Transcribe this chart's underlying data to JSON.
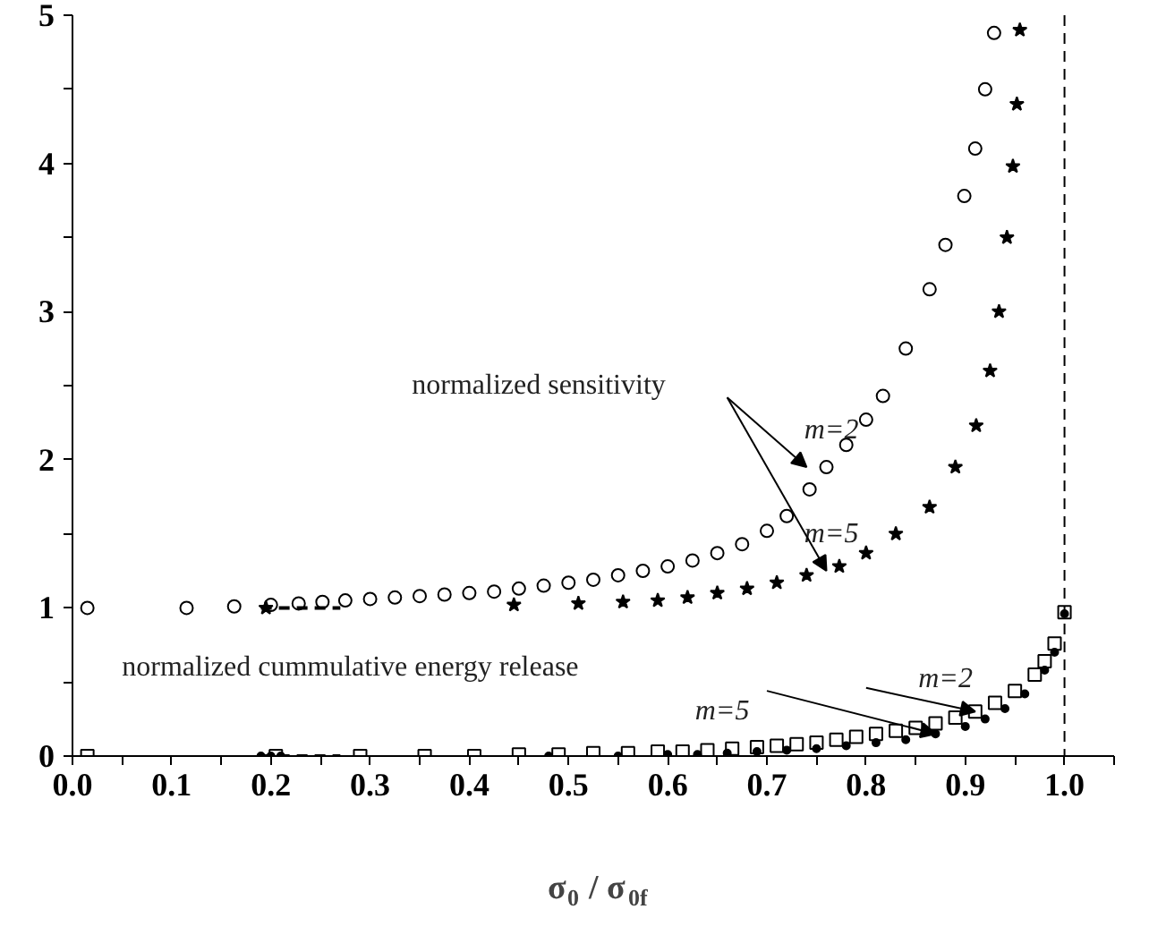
{
  "chart_data": {
    "type": "scatter",
    "xlabel": "σ$_{0}$ / σ$_{0f}$",
    "xlim": [
      0,
      1.05
    ],
    "ylim": [
      0,
      5
    ],
    "xticks": [
      {
        "value": 0,
        "label": "0.0"
      },
      {
        "value": 0.05,
        "label": null
      },
      {
        "value": 0.1,
        "label": "0.1"
      },
      {
        "value": 0.15,
        "label": null
      },
      {
        "value": 0.2,
        "label": "0.2"
      },
      {
        "value": 0.25,
        "label": null
      },
      {
        "value": 0.3,
        "label": "0.3"
      },
      {
        "value": 0.35,
        "label": null
      },
      {
        "value": 0.4,
        "label": "0.4"
      },
      {
        "value": 0.45,
        "label": null
      },
      {
        "value": 0.5,
        "label": "0.5"
      },
      {
        "value": 0.55,
        "label": null
      },
      {
        "value": 0.6,
        "label": "0.6"
      },
      {
        "value": 0.65,
        "label": null
      },
      {
        "value": 0.7,
        "label": "0.7"
      },
      {
        "value": 0.75,
        "label": null
      },
      {
        "value": 0.8,
        "label": "0.8"
      },
      {
        "value": 0.85,
        "label": null
      },
      {
        "value": 0.9,
        "label": "0.9"
      },
      {
        "value": 0.95,
        "label": null
      },
      {
        "value": 1,
        "label": "1.0"
      },
      {
        "value": 1.05,
        "label": null
      }
    ],
    "yticks": [
      0,
      {
        "value": 0.5,
        "label": null
      },
      1,
      {
        "value": 1.5,
        "label": null
      },
      2,
      {
        "value": 2.5,
        "label": null
      },
      3,
      {
        "value": 3.5,
        "label": null
      },
      4,
      {
        "value": 4.5,
        "label": null
      },
      5
    ],
    "grid": false,
    "series": [
      {
        "color": "#000000",
        "marker": "circle",
        "x": [
          0.015,
          0.115,
          0.163,
          0.2,
          0.228,
          0.252,
          0.275,
          0.3,
          0.325,
          0.35,
          0.375,
          0.4,
          0.425,
          0.45,
          0.475,
          0.5,
          0.525,
          0.55,
          0.575,
          0.6,
          0.625,
          0.65,
          0.675,
          0.7,
          0.72,
          0.743,
          0.76,
          0.78,
          0.8,
          0.817,
          0.84,
          0.864,
          0.88,
          0.899,
          0.91,
          0.92,
          0.929
        ],
        "values": [
          1.0,
          1.0,
          1.01,
          1.02,
          1.03,
          1.04,
          1.05,
          1.06,
          1.07,
          1.08,
          1.09,
          1.1,
          1.11,
          1.13,
          1.15,
          1.17,
          1.19,
          1.22,
          1.25,
          1.28,
          1.32,
          1.37,
          1.43,
          1.52,
          1.62,
          1.8,
          1.95,
          2.1,
          2.27,
          2.43,
          2.75,
          3.15,
          3.45,
          3.78,
          4.1,
          4.5,
          4.88
        ]
      },
      {
        "color": "#000000",
        "marker": "star",
        "x": [
          0.195,
          0.445,
          0.51,
          0.555,
          0.59,
          0.62,
          0.65,
          0.68,
          0.71,
          0.74,
          0.773,
          0.8,
          0.83,
          0.864,
          0.89,
          0.911,
          0.925,
          0.934,
          0.942,
          0.948,
          0.952,
          0.955
        ],
        "values": [
          1.0,
          1.02,
          1.03,
          1.04,
          1.05,
          1.07,
          1.1,
          1.13,
          1.17,
          1.22,
          1.28,
          1.37,
          1.5,
          1.68,
          1.95,
          2.23,
          2.6,
          3.0,
          3.5,
          3.98,
          4.4,
          4.9
        ]
      },
      {
        "color": "#000000",
        "marker": "square",
        "x": [
          0.015,
          0.205,
          0.29,
          0.355,
          0.405,
          0.45,
          0.49,
          0.525,
          0.56,
          0.59,
          0.615,
          0.64,
          0.665,
          0.69,
          0.71,
          0.73,
          0.75,
          0.77,
          0.79,
          0.81,
          0.83,
          0.85,
          0.87,
          0.89,
          0.91,
          0.93,
          0.95,
          0.97,
          0.98,
          0.99,
          1.0
        ],
        "values": [
          0,
          0,
          0,
          0,
          0,
          0.01,
          0.01,
          0.02,
          0.02,
          0.03,
          0.03,
          0.04,
          0.05,
          0.06,
          0.07,
          0.08,
          0.09,
          0.11,
          0.13,
          0.15,
          0.17,
          0.19,
          0.22,
          0.26,
          0.3,
          0.36,
          0.44,
          0.55,
          0.64,
          0.76,
          0.97
        ]
      },
      {
        "color": "#000000",
        "marker": "dot",
        "x": [
          0.19,
          0.2,
          0.21,
          0.48,
          0.55,
          0.6,
          0.63,
          0.66,
          0.69,
          0.72,
          0.75,
          0.78,
          0.81,
          0.84,
          0.87,
          0.9,
          0.92,
          0.94,
          0.96,
          0.98,
          0.99,
          1.0
        ],
        "values": [
          0,
          0,
          0,
          0,
          0,
          0.01,
          0.01,
          0.02,
          0.03,
          0.04,
          0.05,
          0.07,
          0.09,
          0.11,
          0.15,
          0.2,
          0.25,
          0.32,
          0.42,
          0.58,
          0.7,
          0.96
        ]
      },
      {
        "type": "line",
        "line_style": "dashed",
        "color": "#000000",
        "x": [
          0.19,
          0.27
        ],
        "values": [
          1,
          1
        ]
      },
      {
        "type": "line",
        "line_style": "dashed",
        "color": "#000000",
        "x": [
          0.19,
          0.27
        ],
        "values": [
          0,
          0
        ]
      }
    ],
    "ref_lines": [
      {
        "axis": "x",
        "value": 1,
        "line_style": "dashed",
        "color": "#000000"
      }
    ],
    "annotations": [
      "normalized sensitivity",
      "m=2",
      "m=5",
      "normalized cummulative energy release",
      {
        "text": "m=2",
        "x": 0.91,
        "y": 0.3
      },
      {
        "text": "m=5",
        "x": 0.87,
        "y": 0.15
      }
    ]
  }
}
